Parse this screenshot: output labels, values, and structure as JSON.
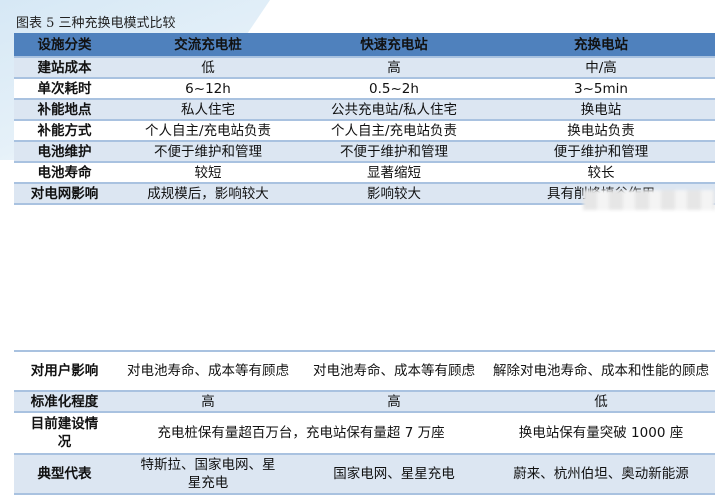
{
  "caption": "图表 5 三种充换电模式比较",
  "headers": [
    "设施分类",
    "交流充电桩",
    "快速充电站",
    "充换电站"
  ],
  "rows": [
    [
      "建站成本",
      "低",
      "高",
      "中/高"
    ],
    [
      "单次耗时",
      "6~12h",
      "0.5~2h",
      "3~5min"
    ],
    [
      "补能地点",
      "私人住宅",
      "公共充电站/私人住宅",
      "换电站"
    ],
    [
      "补能方式",
      "个人自主/充电站负责",
      "个人自主/充电站负责",
      "换电站负责"
    ],
    [
      "电池维护",
      "不便于维护和管理",
      "不便于维护和管理",
      "便于维护和管理"
    ],
    [
      "电池寿命",
      "较短",
      "显著缩短",
      "较长"
    ],
    [
      "对电网影响",
      "成规模后，影响较大",
      "影响较大",
      "具有削峰填谷作用"
    ]
  ],
  "rows2": [
    [
      "对用户影响",
      "对电池寿命、成本等有顾虑",
      "对电池寿命、成本等有顾虑",
      "解除对电池寿命、成本和性能的顾虑"
    ],
    [
      "标准化程度",
      "高",
      "高",
      "低"
    ],
    [
      "目前建设情况",
      "充电桩保有量超百万台，充电站保有量超 7 万座",
      "换电站保有量突破 1000 座"
    ],
    [
      "典型代表",
      "特斯拉、国家电网、星星充电",
      "国家电网、星星充电",
      "蔚来、杭州伯坦、奥动新能源"
    ]
  ],
  "colors": {
    "header": "#4f81bd",
    "alt_row": "#dce6f2"
  }
}
